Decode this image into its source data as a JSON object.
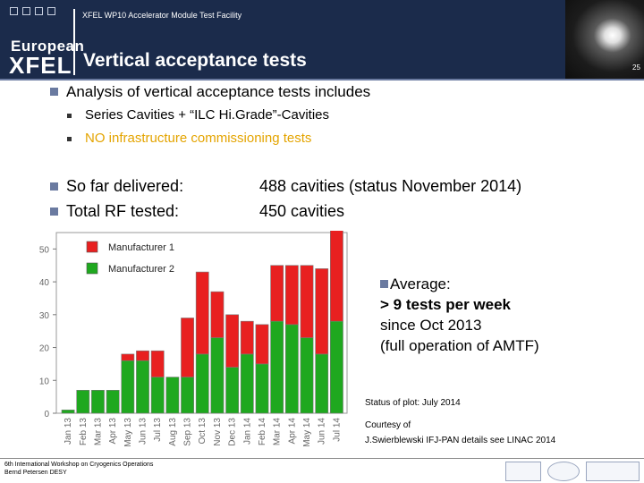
{
  "header": {
    "facility": "XFEL WP10 Accelerator Module Test Facility",
    "title": "Vertical acceptance tests",
    "logo_line1": "European",
    "logo_line2": "XFEL",
    "page_number": "25"
  },
  "content": {
    "intro": "Analysis of vertical acceptance tests includes",
    "subitems": [
      "Series Cavities + “ILC Hi.Grade”-Cavities",
      "NO infrastructure commissioning tests"
    ],
    "sub_colors": [
      "#000000",
      "#e4a400"
    ],
    "delivered_label": "So far delivered:",
    "delivered_value": "488 cavities (status November 2014)",
    "tested_label": "Total RF tested:",
    "tested_value": "450 cavities"
  },
  "chart_data": {
    "type": "bar",
    "stacked": true,
    "categories": [
      "Jan 13",
      "Feb 13",
      "Mar 13",
      "Apr 13",
      "May 13",
      "Jun 13",
      "Jul 13",
      "Aug 13",
      "Sep 13",
      "Oct 13",
      "Nov 13",
      "Dec 13",
      "Jan 14",
      "Feb 14",
      "Mar 14",
      "Apr 14",
      "May 14",
      "Jun 14",
      "Jul 14"
    ],
    "series": [
      {
        "name": "Manufacturer 2",
        "color": "#1fa81f",
        "values": [
          1,
          7,
          7,
          7,
          16,
          16,
          11,
          11,
          11,
          18,
          23,
          14,
          18,
          15,
          28,
          27,
          23,
          18,
          28
        ]
      },
      {
        "name": "Manufacturer 1",
        "color": "#e82020",
        "values": [
          0,
          0,
          0,
          0,
          2,
          3,
          8,
          0,
          18,
          25,
          14,
          16,
          10,
          12,
          17,
          18,
          22,
          26,
          28
        ]
      }
    ],
    "ylim": [
      0,
      55
    ],
    "yticks": [
      "0",
      "10",
      "20",
      "30",
      "40",
      "50"
    ],
    "legend_position": "top-left",
    "grid": false
  },
  "annotations": {
    "avg_line1": "Average:",
    "avg_line2": "> 9 tests per week",
    "avg_line3": "since Oct 2013",
    "avg_line4": "(full operation of AMTF)",
    "status": "Status of plot: July 2014",
    "courtesy1": "Courtesy of",
    "courtesy2": "J.Swierblewski IFJ-PAN details see LINAC 2014"
  },
  "footer": {
    "line1": "6th International Workshop on Cryogenics Operations",
    "line2": "Bernd Petersen DESY"
  },
  "colors": {
    "header_bg": "#1b2b4b",
    "bullet": "#6a7aa0"
  },
  "icons": [
    "european-xfel-logo",
    "infn-logo",
    "photo-cavity",
    "partner-logo"
  ]
}
